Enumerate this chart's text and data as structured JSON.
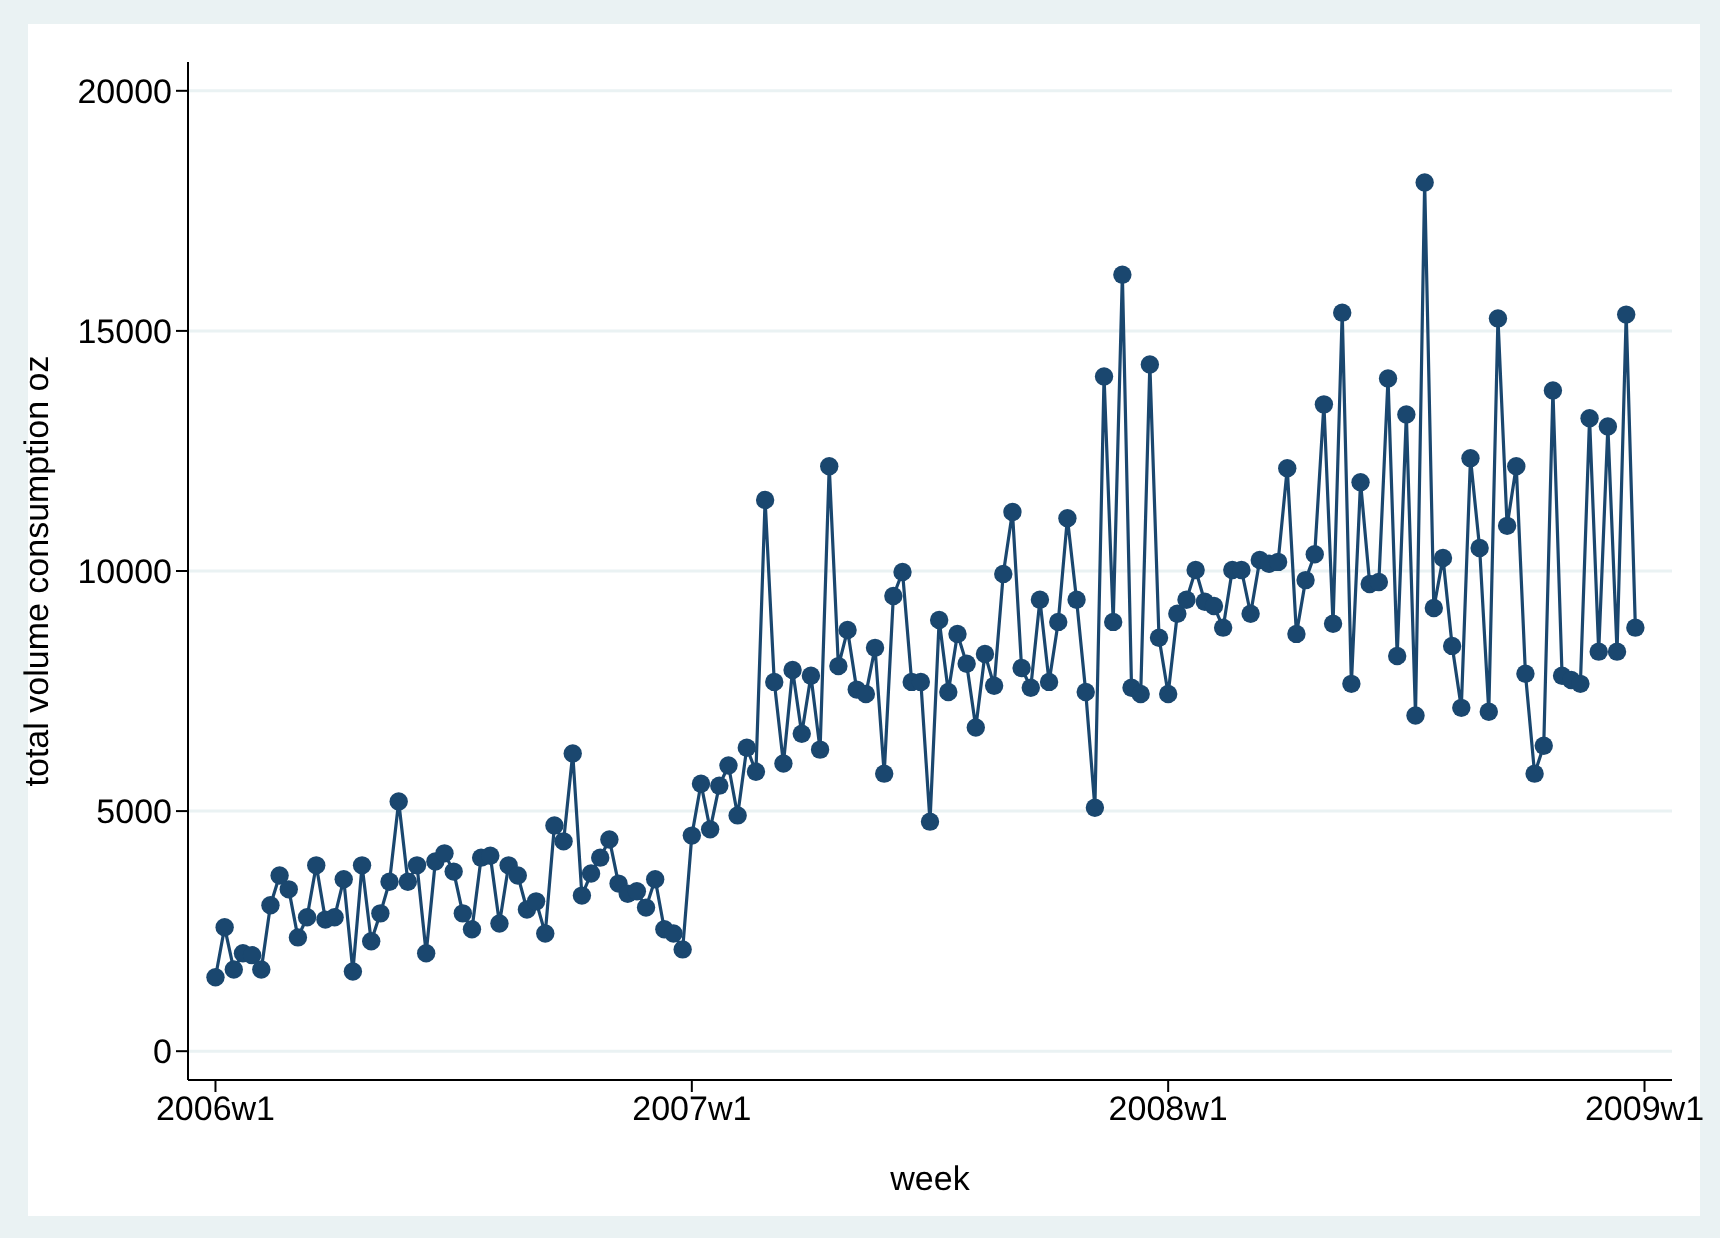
{
  "chart_data": {
    "type": "line",
    "xlabel": "week",
    "ylabel": "total volume consumption oz",
    "categories": [
      "2006w1",
      null,
      null,
      null,
      null,
      null,
      null,
      null,
      null,
      null,
      null,
      null,
      null,
      null,
      null,
      null,
      null,
      null,
      null,
      null,
      null,
      null,
      null,
      null,
      null,
      null,
      null,
      null,
      null,
      null,
      null,
      null,
      null,
      null,
      null,
      null,
      null,
      null,
      null,
      null,
      null,
      null,
      null,
      null,
      null,
      null,
      null,
      null,
      null,
      null,
      null,
      null,
      "2007w1",
      null,
      null,
      null,
      null,
      null,
      null,
      null,
      null,
      null,
      null,
      null,
      null,
      null,
      null,
      null,
      null,
      null,
      null,
      null,
      null,
      null,
      null,
      null,
      null,
      null,
      null,
      null,
      null,
      null,
      null,
      null,
      null,
      null,
      null,
      null,
      null,
      null,
      null,
      null,
      null,
      null,
      null,
      null,
      null,
      null,
      null,
      null,
      null,
      null,
      null,
      null,
      "2008w1",
      null,
      null,
      null,
      null,
      null,
      null,
      null,
      null,
      null,
      null,
      null,
      null,
      null,
      null,
      null,
      null,
      null,
      null,
      null,
      null,
      null,
      null,
      null,
      null,
      null,
      null,
      null,
      null,
      null,
      null,
      null,
      null,
      null,
      null,
      null,
      null,
      null,
      null,
      null,
      null,
      null,
      null,
      null,
      null,
      null,
      null,
      null,
      null,
      null,
      null,
      null,
      "2009w1"
    ],
    "series": [
      {
        "color": "#1a476f",
        "values": [
          1540,
          2580,
          1700,
          2040,
          2000,
          1700,
          3040,
          3660,
          3370,
          2370,
          2790,
          3870,
          2740,
          2790,
          3580,
          1660,
          3870,
          2290,
          2870,
          3530,
          5200,
          3530,
          3870,
          2040,
          3950,
          4120,
          3740,
          2870,
          2540,
          4030,
          4070,
          2660,
          3870,
          3660,
          2950,
          3120,
          2450,
          4700,
          4370,
          6200,
          3240,
          3700,
          4030,
          4410,
          3490,
          3280,
          3330,
          2990,
          3580,
          2540,
          2450,
          2120,
          4490,
          5570,
          4620,
          5530,
          5950,
          4910,
          6320,
          5820,
          11480,
          7690,
          5990,
          7940,
          6610,
          7820,
          6280,
          12180,
          8020,
          8770,
          7530,
          7440,
          8400,
          5780,
          9480,
          9980,
          7690,
          7690,
          4780,
          8980,
          7480,
          8690,
          8070,
          6740,
          8270,
          7610,
          9940,
          11230,
          7980,
          7570,
          9400,
          7690,
          8940,
          11100,
          9400,
          7480,
          5070,
          14050,
          8940,
          16170,
          7570,
          7440,
          14300,
          8610,
          7440,
          9110,
          9400,
          10020,
          9360,
          9270,
          8820,
          10020,
          10020,
          9110,
          10230,
          10150,
          10190,
          12140,
          8690,
          9810,
          10350,
          13470,
          8900,
          15380,
          7650,
          11850,
          9730,
          9770,
          14010,
          8230,
          13260,
          6990,
          18090,
          9230,
          10270,
          8440,
          7150,
          12350,
          10480,
          7070,
          15260,
          10940,
          12180,
          7860,
          5780,
          6360,
          13760,
          7820,
          7730,
          7650,
          13180,
          8320,
          13010,
          8320,
          15340,
          8820,
          null
        ]
      }
    ],
    "ylim": [
      -600,
      20600
    ],
    "yticks": [
      0,
      5000,
      10000,
      15000,
      20000
    ],
    "grid": "y",
    "marker": "circle",
    "line_style": "solid"
  }
}
